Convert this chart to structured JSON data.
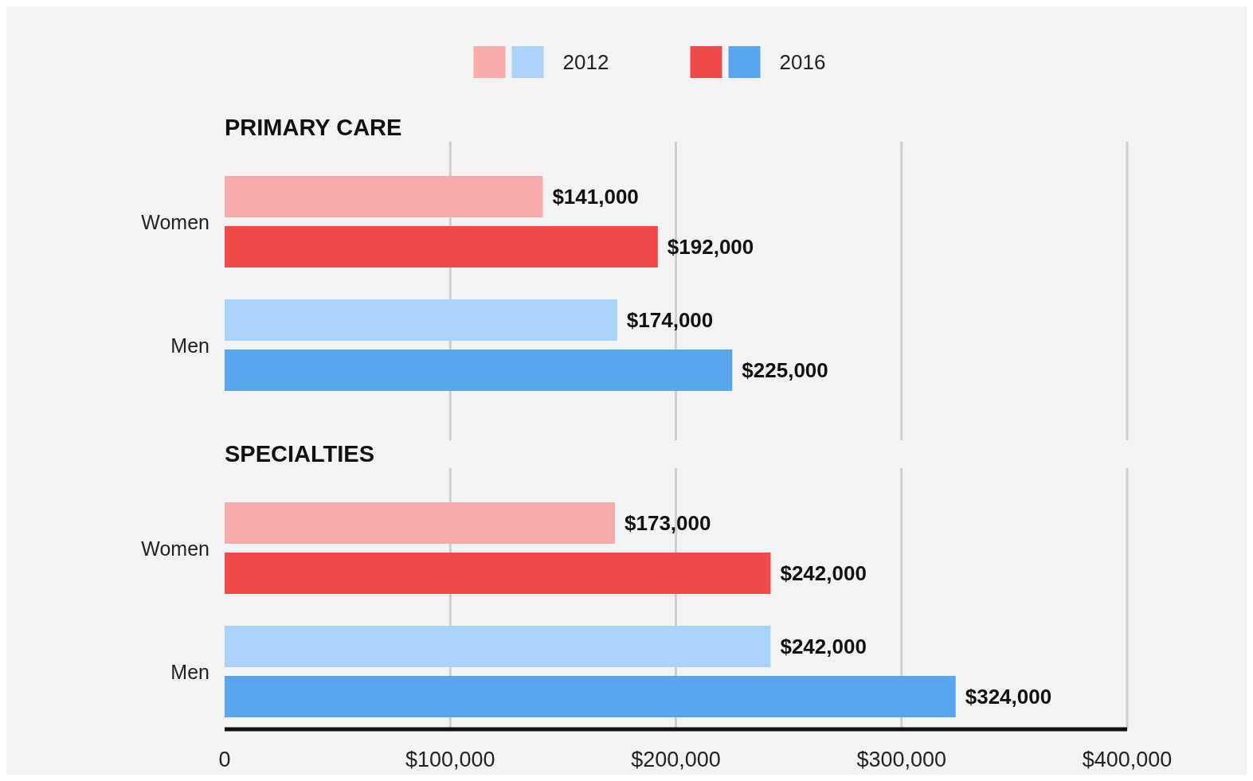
{
  "chart_data": [
    {
      "type": "bar",
      "orientation": "horizontal",
      "title": "PRIMARY CARE",
      "categories": [
        "Women",
        "Men"
      ],
      "series": [
        {
          "name": "2012",
          "colors": [
            "#f8abab",
            "#aad3f8"
          ],
          "values": [
            141000,
            174000
          ],
          "value_labels": [
            "$141,000",
            "$174,000"
          ]
        },
        {
          "name": "2016",
          "colors": [
            "#ef4a4a",
            "#58a6ee"
          ],
          "values": [
            192000,
            225000
          ],
          "value_labels": [
            "$192,000",
            "$225,000"
          ]
        }
      ],
      "xlim": [
        0,
        400000
      ],
      "xticks": [
        0,
        100000,
        200000,
        300000,
        400000
      ],
      "grid": "x",
      "legend": "top",
      "tick_labels": "y"
    },
    {
      "type": "bar",
      "orientation": "horizontal",
      "title": "SPECIALTIES",
      "categories": [
        "Women",
        "Men"
      ],
      "series": [
        {
          "colors": [
            "#f8abab",
            "#aad3f8"
          ],
          "values": [
            173000,
            242000
          ],
          "value_labels": [
            "$173,000",
            "$242,000"
          ]
        },
        {
          "colors": [
            "#ef4a4a",
            "#58a6ee"
          ],
          "values": [
            242000,
            324000
          ],
          "value_labels": [
            "$242,000",
            "$324,000"
          ]
        }
      ],
      "xlim": [
        0,
        400000
      ],
      "xticks": [
        0,
        {
          "value": 100000,
          "label": "$100,000"
        },
        {
          "value": 200000,
          "label": "$200,000"
        },
        {
          "value": 300000,
          "label": "$300,000"
        },
        {
          "value": 400000,
          "label": "$400,000"
        }
      ],
      "grid": "x"
    }
  ]
}
